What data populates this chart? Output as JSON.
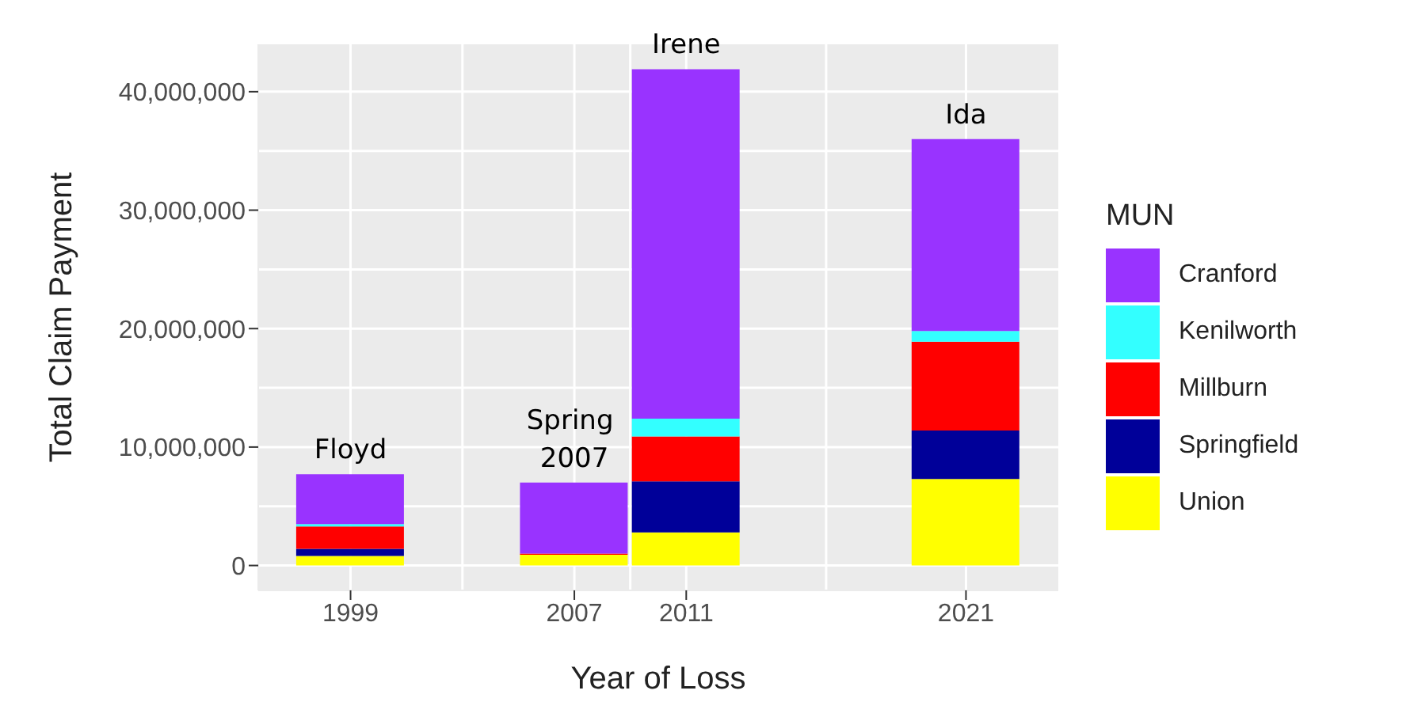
{
  "chart_data": {
    "type": "bar",
    "stacked": true,
    "xlabel": "Year of Loss",
    "ylabel": "Total Claim Payment",
    "legend_title": "MUN",
    "legend": "right",
    "grid": true,
    "x": [
      1999,
      2007,
      2011,
      2021
    ],
    "xlim": [
      1995.7,
      2024.3
    ],
    "xticks": [
      1999,
      2007,
      2011,
      2021
    ],
    "ylim": [
      -2100000,
      44000000
    ],
    "yticks": [
      0,
      {
        "value": 10000000,
        "label": "10,000,000"
      },
      {
        "value": 20000000,
        "label": "20,000,000"
      },
      {
        "value": 30000000,
        "label": "30,000,000"
      },
      {
        "value": 40000000,
        "label": "40,000,000"
      }
    ],
    "series": [
      {
        "name": "Union",
        "color": "#ffff00",
        "values": [
          800000,
          900000,
          2800000,
          7300000
        ]
      },
      {
        "name": "Springfield",
        "color": "#000099",
        "values": [
          600000,
          0,
          4300000,
          4100000
        ]
      },
      {
        "name": "Millburn",
        "color": "#ff0000",
        "values": [
          1900000,
          100000,
          3800000,
          7500000
        ]
      },
      {
        "name": "Kenilworth",
        "color": "#33ffff",
        "values": [
          200000,
          0,
          1500000,
          900000
        ]
      },
      {
        "name": "Cranford",
        "color": "#9933ff",
        "values": [
          4200000,
          6000000,
          29500000,
          16200000
        ]
      }
    ],
    "annotations": [
      {
        "text": "Floyd",
        "x": 1999,
        "y": 7700000
      },
      {
        "text": "Spring 2007",
        "x": 2007,
        "y": 7000000
      },
      {
        "text": "Irene",
        "x": 2011,
        "y": 41900000
      },
      {
        "text": "Ida",
        "x": 2021,
        "y": 36000000
      }
    ]
  }
}
